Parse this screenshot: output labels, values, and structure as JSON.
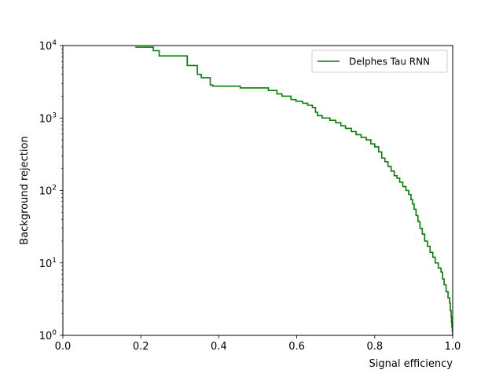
{
  "chart_data": {
    "type": "line",
    "title": "",
    "xlabel": "Signal efficiency",
    "ylabel": "Background rejection",
    "xlim": [
      0,
      1
    ],
    "ylim": [
      1,
      10000
    ],
    "yscale": "log",
    "grid": false,
    "legend": {
      "position": "top-right"
    },
    "x_ticks": [
      {
        "value": 0.0,
        "label": "0.0"
      },
      {
        "value": 0.2,
        "label": "0.2"
      },
      {
        "value": 0.4,
        "label": "0.4"
      },
      {
        "value": 0.6,
        "label": "0.6"
      },
      {
        "value": 0.8,
        "label": "0.8"
      },
      {
        "value": 1.0,
        "label": "1.0"
      }
    ],
    "y_ticks": [
      {
        "value": 1,
        "base": "10",
        "exp": "0"
      },
      {
        "value": 10,
        "base": "10",
        "exp": "1"
      },
      {
        "value": 100,
        "base": "10",
        "exp": "2"
      },
      {
        "value": 1000,
        "base": "10",
        "exp": "3"
      },
      {
        "value": 10000,
        "base": "10",
        "exp": "4"
      }
    ],
    "series": [
      {
        "name": "Delphes Tau RNN",
        "color": "#008000",
        "step": true,
        "points": [
          [
            0.186,
            9500
          ],
          [
            0.232,
            9500
          ],
          [
            0.232,
            8500
          ],
          [
            0.247,
            8500
          ],
          [
            0.247,
            7200
          ],
          [
            0.319,
            7200
          ],
          [
            0.319,
            5300
          ],
          [
            0.345,
            5300
          ],
          [
            0.345,
            4000
          ],
          [
            0.355,
            4000
          ],
          [
            0.355,
            3600
          ],
          [
            0.378,
            3600
          ],
          [
            0.378,
            2850
          ],
          [
            0.385,
            2850
          ],
          [
            0.385,
            2750
          ],
          [
            0.455,
            2750
          ],
          [
            0.455,
            2600
          ],
          [
            0.527,
            2600
          ],
          [
            0.527,
            2400
          ],
          [
            0.549,
            2400
          ],
          [
            0.549,
            2150
          ],
          [
            0.562,
            2150
          ],
          [
            0.562,
            2000
          ],
          [
            0.585,
            2000
          ],
          [
            0.585,
            1800
          ],
          [
            0.598,
            1800
          ],
          [
            0.598,
            1700
          ],
          [
            0.615,
            1700
          ],
          [
            0.615,
            1600
          ],
          [
            0.628,
            1600
          ],
          [
            0.628,
            1500
          ],
          [
            0.64,
            1500
          ],
          [
            0.64,
            1400
          ],
          [
            0.648,
            1400
          ],
          [
            0.648,
            1200
          ],
          [
            0.653,
            1200
          ],
          [
            0.653,
            1080
          ],
          [
            0.665,
            1080
          ],
          [
            0.665,
            1000
          ],
          [
            0.685,
            1000
          ],
          [
            0.685,
            930
          ],
          [
            0.7,
            930
          ],
          [
            0.7,
            860
          ],
          [
            0.713,
            860
          ],
          [
            0.713,
            780
          ],
          [
            0.725,
            780
          ],
          [
            0.725,
            720
          ],
          [
            0.74,
            720
          ],
          [
            0.74,
            650
          ],
          [
            0.752,
            650
          ],
          [
            0.752,
            590
          ],
          [
            0.765,
            590
          ],
          [
            0.765,
            540
          ],
          [
            0.778,
            540
          ],
          [
            0.778,
            500
          ],
          [
            0.79,
            500
          ],
          [
            0.79,
            440
          ],
          [
            0.8,
            440
          ],
          [
            0.8,
            400
          ],
          [
            0.81,
            400
          ],
          [
            0.81,
            340
          ],
          [
            0.818,
            340
          ],
          [
            0.818,
            280
          ],
          [
            0.826,
            280
          ],
          [
            0.826,
            250
          ],
          [
            0.834,
            250
          ],
          [
            0.834,
            215
          ],
          [
            0.842,
            215
          ],
          [
            0.842,
            185
          ],
          [
            0.85,
            185
          ],
          [
            0.85,
            160
          ],
          [
            0.857,
            160
          ],
          [
            0.857,
            148
          ],
          [
            0.864,
            148
          ],
          [
            0.864,
            130
          ],
          [
            0.872,
            130
          ],
          [
            0.872,
            113
          ],
          [
            0.88,
            113
          ],
          [
            0.88,
            100
          ],
          [
            0.887,
            100
          ],
          [
            0.887,
            88
          ],
          [
            0.893,
            88
          ],
          [
            0.893,
            75
          ],
          [
            0.897,
            75
          ],
          [
            0.897,
            65
          ],
          [
            0.901,
            65
          ],
          [
            0.901,
            55
          ],
          [
            0.906,
            55
          ],
          [
            0.906,
            45
          ],
          [
            0.911,
            45
          ],
          [
            0.911,
            37
          ],
          [
            0.916,
            37
          ],
          [
            0.916,
            30
          ],
          [
            0.922,
            30
          ],
          [
            0.922,
            25
          ],
          [
            0.928,
            25
          ],
          [
            0.928,
            20
          ],
          [
            0.935,
            20
          ],
          [
            0.935,
            17
          ],
          [
            0.942,
            17
          ],
          [
            0.942,
            14
          ],
          [
            0.949,
            14
          ],
          [
            0.949,
            12
          ],
          [
            0.955,
            12
          ],
          [
            0.955,
            10
          ],
          [
            0.963,
            10
          ],
          [
            0.963,
            8.5
          ],
          [
            0.97,
            8.5
          ],
          [
            0.97,
            7.5
          ],
          [
            0.974,
            7.5
          ],
          [
            0.974,
            6
          ],
          [
            0.978,
            6
          ],
          [
            0.978,
            5
          ],
          [
            0.983,
            5
          ],
          [
            0.983,
            4
          ],
          [
            0.988,
            4
          ],
          [
            0.988,
            3.3
          ],
          [
            0.992,
            3.3
          ],
          [
            0.992,
            2.8
          ],
          [
            0.994,
            2.8
          ],
          [
            0.994,
            2.2
          ],
          [
            0.996,
            2.2
          ],
          [
            0.996,
            1.8
          ],
          [
            0.997,
            1.8
          ],
          [
            0.997,
            1.5
          ],
          [
            0.998,
            1.5
          ],
          [
            0.998,
            1.3
          ],
          [
            0.999,
            1.3
          ],
          [
            0.999,
            1.15
          ],
          [
            1.0,
            1.15
          ],
          [
            1.0,
            1.0
          ]
        ]
      }
    ]
  }
}
